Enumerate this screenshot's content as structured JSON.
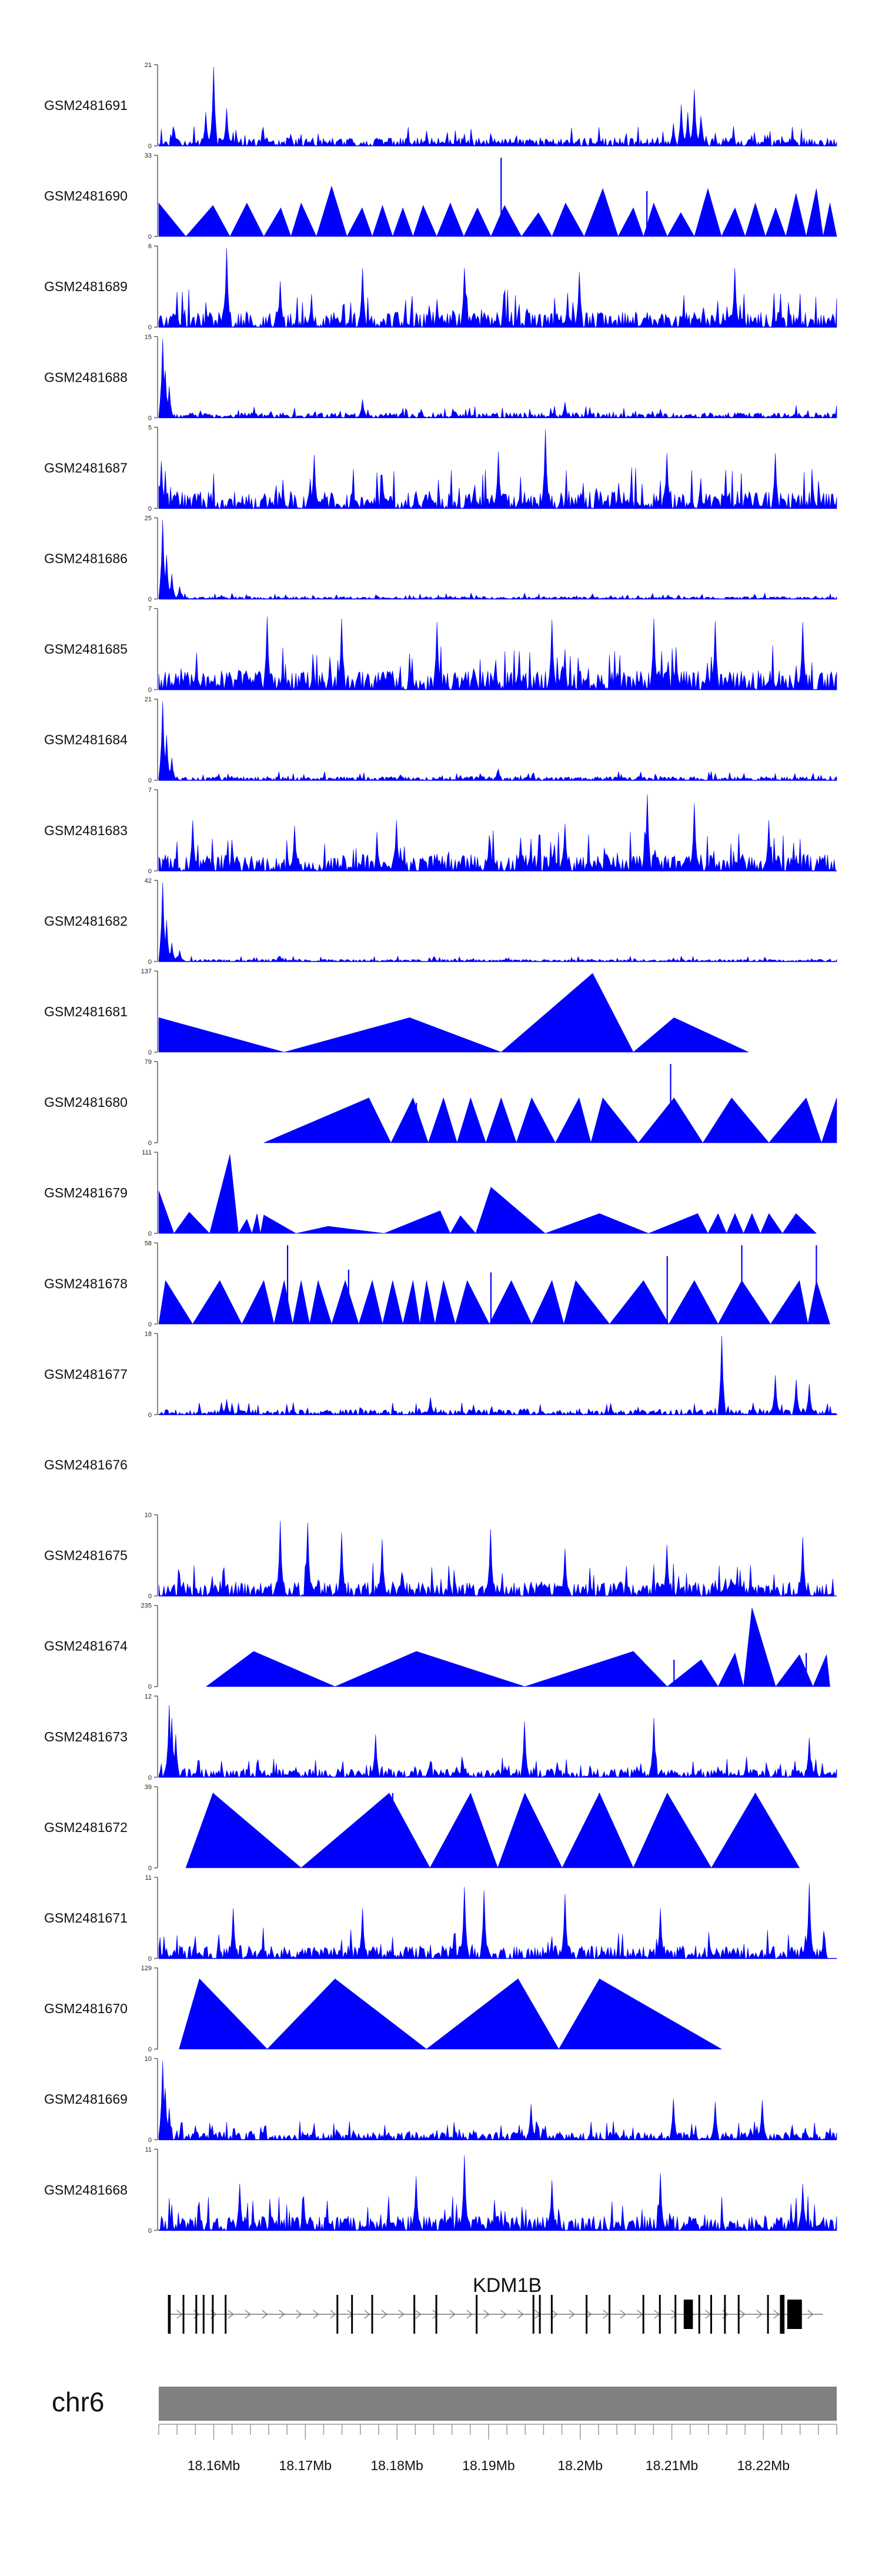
{
  "chart_data": {
    "type": "area",
    "title": "",
    "chromosome": "chr6",
    "gene": {
      "name": "KDM1B",
      "strand": "+",
      "start": 18155000,
      "end": 18226500
    },
    "x_range_bp": [
      18154000,
      18228000
    ],
    "x_tick_step_bp": 2000,
    "x_labels": [
      {
        "pos": 18160000,
        "label": "18.16Mb"
      },
      {
        "pos": 18170000,
        "label": "18.17Mb"
      },
      {
        "pos": 18180000,
        "label": "18.18Mb"
      },
      {
        "pos": 18190000,
        "label": "18.19Mb"
      },
      {
        "pos": 18200000,
        "label": "18.2Mb"
      },
      {
        "pos": 18210000,
        "label": "18.21Mb"
      },
      {
        "pos": 18220000,
        "label": "18.22Mb"
      }
    ],
    "series": [
      {
        "name": "GSM2481691",
        "ymax": 21,
        "style": "noisy",
        "base": 2.2,
        "peaks": [
          [
            0.08,
            21
          ],
          [
            0.07,
            9
          ],
          [
            0.1,
            10
          ],
          [
            0.77,
            11
          ],
          [
            0.78,
            9
          ],
          [
            0.79,
            15
          ],
          [
            0.8,
            8
          ],
          [
            0.76,
            6
          ]
        ],
        "seed": 11
      },
      {
        "name": "GSM2481690",
        "ymax": 33,
        "style": "triangles",
        "peaks": [
          [
            0.0,
            14
          ],
          [
            0.08,
            13
          ],
          [
            0.13,
            14
          ],
          [
            0.18,
            12
          ],
          [
            0.21,
            14
          ],
          [
            0.255,
            21
          ],
          [
            0.3,
            12
          ],
          [
            0.33,
            13
          ],
          [
            0.36,
            12
          ],
          [
            0.39,
            13
          ],
          [
            0.43,
            14
          ],
          [
            0.47,
            12
          ],
          [
            0.51,
            13
          ],
          [
            0.56,
            10
          ],
          [
            0.6,
            14
          ],
          [
            0.655,
            20
          ],
          [
            0.7,
            12
          ],
          [
            0.73,
            14
          ],
          [
            0.77,
            10
          ],
          [
            0.81,
            20
          ],
          [
            0.85,
            12
          ],
          [
            0.88,
            14
          ],
          [
            0.91,
            12
          ],
          [
            0.94,
            18
          ],
          [
            0.97,
            20
          ],
          [
            0.99,
            14
          ]
        ],
        "spikes": [
          [
            0.505,
            33
          ],
          [
            0.72,
            19
          ]
        ]
      },
      {
        "name": "GSM2481689",
        "ymax": 6,
        "style": "noisy",
        "base": 1.2,
        "peaks": [
          [
            0.1,
            6
          ],
          [
            0.3,
            4.5
          ],
          [
            0.45,
            4.5
          ],
          [
            0.62,
            4.2
          ],
          [
            0.85,
            4.5
          ],
          [
            0.18,
            3.5
          ]
        ],
        "seed": 23
      },
      {
        "name": "GSM2481688",
        "ymax": 15,
        "style": "noisy",
        "base": 1.0,
        "peaks": [
          [
            0.005,
            15
          ],
          [
            0.01,
            9
          ],
          [
            0.015,
            6
          ],
          [
            0.3,
            3.5
          ],
          [
            0.6,
            3
          ]
        ],
        "seed": 31
      },
      {
        "name": "GSM2481687",
        "ymax": 5,
        "style": "noisy",
        "base": 1.1,
        "peaks": [
          [
            0.57,
            5
          ],
          [
            0.5,
            3.6
          ],
          [
            0.23,
            3.4
          ],
          [
            0.75,
            3.5
          ],
          [
            0.91,
            3.5
          ],
          [
            0.004,
            3
          ]
        ],
        "seed": 47
      },
      {
        "name": "GSM2481686",
        "ymax": 25,
        "style": "noisy",
        "base": 0.8,
        "peaks": [
          [
            0.006,
            25
          ],
          [
            0.012,
            14
          ],
          [
            0.02,
            8
          ],
          [
            0.03,
            4
          ]
        ],
        "seed": 53
      },
      {
        "name": "GSM2481685",
        "ymax": 7,
        "style": "noisy",
        "base": 1.7,
        "peaks": [
          [
            0.16,
            6.5
          ],
          [
            0.27,
            6.3
          ],
          [
            0.41,
            6
          ],
          [
            0.58,
            6.2
          ],
          [
            0.73,
            6.3
          ],
          [
            0.82,
            6.1
          ],
          [
            0.95,
            6
          ]
        ],
        "seed": 61
      },
      {
        "name": "GSM2481684",
        "ymax": 21,
        "style": "noisy",
        "base": 1.0,
        "peaks": [
          [
            0.006,
            21
          ],
          [
            0.012,
            12
          ],
          [
            0.02,
            6
          ],
          [
            0.5,
            3
          ]
        ],
        "seed": 71
      },
      {
        "name": "GSM2481683",
        "ymax": 7,
        "style": "noisy",
        "base": 1.5,
        "peaks": [
          [
            0.72,
            6.8
          ],
          [
            0.79,
            6
          ],
          [
            0.05,
            4.5
          ],
          [
            0.2,
            4
          ],
          [
            0.35,
            4.5
          ],
          [
            0.6,
            4.2
          ],
          [
            0.9,
            4.5
          ]
        ],
        "seed": 83
      },
      {
        "name": "GSM2481682",
        "ymax": 42,
        "style": "noisy",
        "base": 1.2,
        "peaks": [
          [
            0.006,
            42
          ],
          [
            0.012,
            22
          ],
          [
            0.02,
            10
          ],
          [
            0.03,
            6
          ]
        ],
        "seed": 97
      },
      {
        "name": "GSM2481681",
        "ymax": 137,
        "style": "triangles",
        "peaks": [
          [
            0.0,
            60
          ],
          [
            0.37,
            60
          ],
          [
            0.64,
            137
          ],
          [
            0.76,
            60
          ]
        ],
        "end": 0.87
      },
      {
        "name": "GSM2481680",
        "ymax": 79,
        "style": "triangles",
        "start": 0.155,
        "peaks": [
          [
            0.31,
            45
          ],
          [
            0.375,
            45
          ],
          [
            0.42,
            45
          ],
          [
            0.46,
            45
          ],
          [
            0.505,
            45
          ],
          [
            0.55,
            45
          ],
          [
            0.62,
            45
          ],
          [
            0.655,
            45
          ],
          [
            0.76,
            45
          ],
          [
            0.845,
            45
          ],
          [
            0.955,
            45
          ],
          [
            1.0,
            45
          ]
        ],
        "spikes": [
          [
            0.38,
            40
          ],
          [
            0.755,
            79
          ]
        ]
      },
      {
        "name": "GSM2481679",
        "ymax": 111,
        "style": "triangles",
        "peaks": [
          [
            0.0,
            60
          ],
          [
            0.045,
            30
          ],
          [
            0.105,
            111
          ],
          [
            0.13,
            20
          ],
          [
            0.145,
            28
          ],
          [
            0.155,
            26
          ],
          [
            0.25,
            10
          ],
          [
            0.415,
            32
          ],
          [
            0.445,
            25
          ],
          [
            0.49,
            65
          ],
          [
            0.65,
            28
          ],
          [
            0.795,
            28
          ],
          [
            0.825,
            28
          ],
          [
            0.85,
            28
          ],
          [
            0.875,
            28
          ],
          [
            0.9,
            28
          ],
          [
            0.94,
            28
          ]
        ],
        "end": 0.97
      },
      {
        "name": "GSM2481678",
        "ymax": 58,
        "style": "triangles",
        "peaks": [
          [
            0.01,
            32
          ],
          [
            0.09,
            32
          ],
          [
            0.155,
            32
          ],
          [
            0.185,
            32
          ],
          [
            0.21,
            32
          ],
          [
            0.235,
            32
          ],
          [
            0.275,
            32
          ],
          [
            0.315,
            32
          ],
          [
            0.345,
            32
          ],
          [
            0.375,
            32
          ],
          [
            0.395,
            32
          ],
          [
            0.42,
            32
          ],
          [
            0.455,
            32
          ],
          [
            0.52,
            32
          ],
          [
            0.58,
            32
          ],
          [
            0.615,
            32
          ],
          [
            0.715,
            32
          ],
          [
            0.79,
            32
          ],
          [
            0.86,
            32
          ],
          [
            0.945,
            32
          ],
          [
            0.97,
            32
          ]
        ],
        "spikes": [
          [
            0.19,
            58
          ],
          [
            0.75,
            50
          ],
          [
            0.86,
            58
          ],
          [
            0.97,
            58
          ],
          [
            0.28,
            40
          ],
          [
            0.49,
            38
          ]
        ],
        "end": 0.99
      },
      {
        "name": "GSM2481677",
        "ymax": 18,
        "style": "noisy",
        "base": 1.2,
        "peaks": [
          [
            0.83,
            18
          ],
          [
            0.91,
            9
          ],
          [
            0.94,
            8
          ],
          [
            0.96,
            7
          ],
          [
            0.4,
            4
          ],
          [
            0.1,
            3.5
          ]
        ],
        "seed": 109
      },
      {
        "name": "GSM2481676",
        "ymax": null,
        "style": "empty",
        "peaks": []
      },
      {
        "name": "GSM2481675",
        "ymax": 10,
        "style": "noisy",
        "base": 1.8,
        "peaks": [
          [
            0.18,
            9.5
          ],
          [
            0.22,
            9.3
          ],
          [
            0.27,
            8
          ],
          [
            0.33,
            7.2
          ],
          [
            0.49,
            8.5
          ],
          [
            0.75,
            6.5
          ],
          [
            0.95,
            7.5
          ],
          [
            0.6,
            6
          ]
        ],
        "seed": 127
      },
      {
        "name": "GSM2481674",
        "ymax": 235,
        "style": "triangles",
        "start": 0.07,
        "peaks": [
          [
            0.14,
            105
          ],
          [
            0.38,
            105
          ],
          [
            0.7,
            105
          ],
          [
            0.8,
            80
          ],
          [
            0.85,
            100
          ],
          [
            0.875,
            235
          ],
          [
            0.945,
            95
          ],
          [
            0.985,
            95
          ]
        ],
        "spikes": [
          [
            0.76,
            80
          ],
          [
            0.955,
            100
          ]
        ],
        "end": 0.99
      },
      {
        "name": "GSM2481673",
        "ymax": 12,
        "style": "noisy",
        "base": 1.3,
        "peaks": [
          [
            0.015,
            11
          ],
          [
            0.02,
            9
          ],
          [
            0.025,
            6.5
          ],
          [
            0.54,
            8.5
          ],
          [
            0.73,
            9
          ],
          [
            0.32,
            6.5
          ],
          [
            0.96,
            6
          ]
        ],
        "seed": 131
      },
      {
        "name": "GSM2481672",
        "ymax": 39,
        "style": "triangles",
        "start": 0.04,
        "peaks": [
          [
            0.08,
            37
          ],
          [
            0.34,
            37
          ],
          [
            0.46,
            37
          ],
          [
            0.54,
            37
          ],
          [
            0.65,
            37
          ],
          [
            0.75,
            37
          ],
          [
            0.88,
            37
          ]
        ],
        "spikes": [
          [
            0.345,
            37
          ],
          [
            0.65,
            37
          ],
          [
            0.88,
            37
          ]
        ],
        "end": 0.945
      },
      {
        "name": "GSM2481671",
        "ymax": 11,
        "style": "noisy",
        "base": 1.8,
        "peaks": [
          [
            0.45,
            10
          ],
          [
            0.48,
            9.5
          ],
          [
            0.6,
            9
          ],
          [
            0.96,
            10.5
          ],
          [
            0.11,
            7
          ],
          [
            0.3,
            7
          ],
          [
            0.74,
            7
          ]
        ],
        "end": 0.985,
        "seed": 149
      },
      {
        "name": "GSM2481670",
        "ymax": 129,
        "style": "triangles",
        "start": 0.03,
        "peaks": [
          [
            0.06,
            115
          ],
          [
            0.26,
            115
          ],
          [
            0.53,
            115
          ],
          [
            0.65,
            115
          ]
        ],
        "end": 0.83
      },
      {
        "name": "GSM2481669",
        "ymax": 10,
        "style": "noisy",
        "base": 1.0,
        "peaks": [
          [
            0.005,
            10
          ],
          [
            0.01,
            6.5
          ],
          [
            0.015,
            4
          ],
          [
            0.76,
            5.2
          ],
          [
            0.82,
            4.8
          ],
          [
            0.89,
            5
          ],
          [
            0.55,
            4.5
          ]
        ],
        "seed": 157
      },
      {
        "name": "GSM2481668",
        "ymax": 11,
        "style": "noisy",
        "base": 2.0,
        "peaks": [
          [
            0.45,
            10.5
          ],
          [
            0.38,
            7.5
          ],
          [
            0.74,
            8
          ],
          [
            0.58,
            7
          ],
          [
            0.95,
            6.5
          ],
          [
            0.12,
            6.5
          ]
        ],
        "seed": 163
      }
    ],
    "gene_model": {
      "exons_bp": [
        [
          18155000,
          18155300
        ],
        [
          18156600,
          18156750
        ],
        [
          18158000,
          18158100
        ],
        [
          18158800,
          18158900
        ],
        [
          18159800,
          18159900
        ],
        [
          18161200,
          18161300
        ],
        [
          18173400,
          18173500
        ],
        [
          18175000,
          18175150
        ],
        [
          18177200,
          18177300
        ],
        [
          18181800,
          18181950
        ],
        [
          18184200,
          18184300
        ],
        [
          18188600,
          18188700
        ],
        [
          18194800,
          18194900
        ],
        [
          18195500,
          18195650
        ],
        [
          18196800,
          18196900
        ],
        [
          18200600,
          18200700
        ],
        [
          18203100,
          18203200
        ],
        [
          18206800,
          18206900
        ],
        [
          18208600,
          18208700
        ],
        [
          18210300,
          18210400
        ],
        [
          18211300,
          18212300
        ],
        [
          18212900,
          18213000
        ],
        [
          18214200,
          18214300
        ],
        [
          18215700,
          18215800
        ],
        [
          18217200,
          18217300
        ],
        [
          18220400,
          18220500
        ],
        [
          18221800,
          18222300
        ],
        [
          18222600,
          18224200
        ]
      ],
      "tall_exons_bp": [
        [
          18211300,
          18212300
        ],
        [
          18222600,
          18224200
        ]
      ]
    }
  }
}
